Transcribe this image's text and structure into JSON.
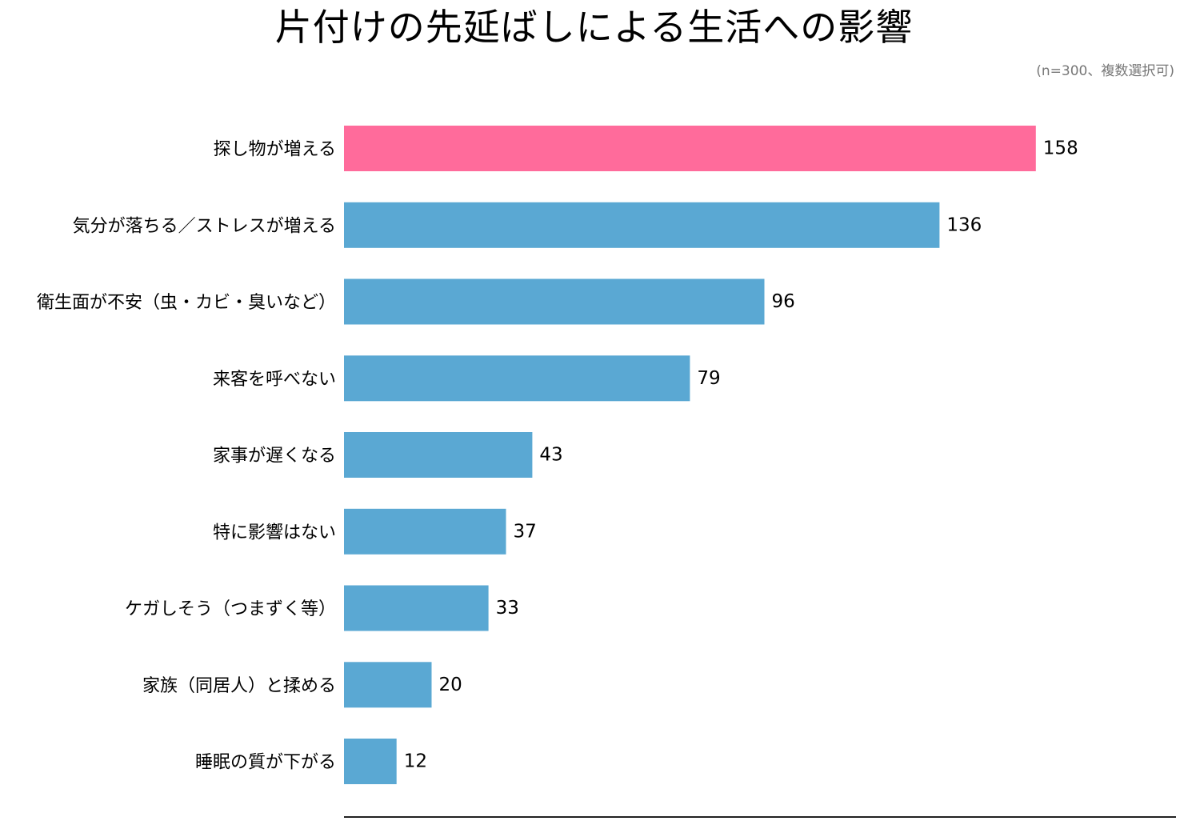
{
  "chart_data": {
    "type": "bar",
    "orientation": "horizontal",
    "title": "片付けの先延ばしによる生活への影響",
    "subtitle": "(n=300、複数選択可)",
    "categories": [
      "探し物が増える",
      "気分が落ちる／ストレスが増える",
      "衛生面が不安（虫・カビ・臭いなど）",
      "来客を呼べない",
      "家事が遅くなる",
      "特に影響はない",
      "ケガしそう（つまずく等）",
      "家族（同居人）と揉める",
      "睡眠の質が下がる"
    ],
    "values": [
      158,
      136,
      96,
      79,
      43,
      37,
      33,
      20,
      12
    ],
    "value_labels": [
      "158",
      "136",
      "96",
      "79",
      "43",
      "37",
      "33",
      "20",
      "12"
    ],
    "xlim": [
      0,
      190
    ],
    "grid": false,
    "legend": "none",
    "colors": {
      "highlight": "#ff6b9b",
      "bar": "#5aa8d3",
      "axis": "#222222",
      "note": "#777777"
    },
    "highlight_index": 0
  }
}
